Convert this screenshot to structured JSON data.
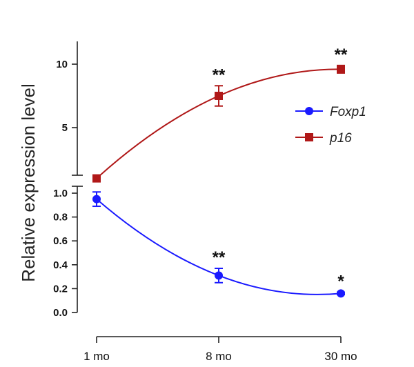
{
  "chart_data": {
    "type": "line",
    "ylabel": "Relative expression level",
    "categories": [
      "1 mo",
      "8 mo",
      "30 mo"
    ],
    "y_axis_upper": {
      "range": [
        1,
        12
      ],
      "ticks": [
        "5",
        "10"
      ],
      "tick_values": [
        5,
        10
      ]
    },
    "y_axis_lower": {
      "range": [
        0,
        1.0
      ],
      "ticks": [
        "0.0",
        "0.2",
        "0.4",
        "0.6",
        "0.8",
        "1.0"
      ],
      "tick_values": [
        0,
        0.2,
        0.4,
        0.6,
        0.8,
        1.0
      ]
    },
    "series": [
      {
        "name": "Foxp1",
        "color": "#1a1aff",
        "marker": "circle",
        "axis": "lower",
        "values": [
          0.95,
          0.31,
          0.16
        ],
        "errors": [
          0.06,
          0.06,
          0.01
        ],
        "significance": [
          "",
          "**",
          "*"
        ]
      },
      {
        "name": "p16",
        "color": "#b01818",
        "marker": "square",
        "axis": "upper",
        "values": [
          1.0,
          7.5,
          9.6
        ],
        "errors": [
          0.1,
          0.8,
          0.3
        ],
        "significance": [
          "",
          "**",
          "**"
        ]
      }
    ],
    "legend": {
      "placement": "right"
    },
    "grid": false
  }
}
